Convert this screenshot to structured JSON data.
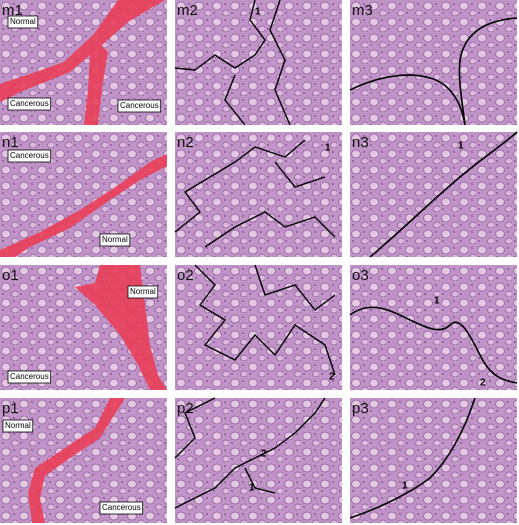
{
  "panels": [
    {
      "label": "m1",
      "annotations": [
        "Normal",
        "Cancerous",
        "Cancerous"
      ]
    },
    {
      "label": "m2",
      "annotations": [
        "1"
      ]
    },
    {
      "label": "m3",
      "annotations": []
    },
    {
      "label": "n1",
      "annotations": [
        "Cancerous",
        "Normal"
      ]
    },
    {
      "label": "n2",
      "annotations": [
        "1"
      ]
    },
    {
      "label": "n3",
      "annotations": [
        "1"
      ]
    },
    {
      "label": "o1",
      "annotations": [
        "Normal",
        "Cancerous"
      ]
    },
    {
      "label": "o2",
      "annotations": [
        "2"
      ]
    },
    {
      "label": "o3",
      "annotations": [
        "1",
        "2"
      ]
    },
    {
      "label": "p1",
      "annotations": [
        "Normal",
        "Cancerous"
      ]
    },
    {
      "label": "p2",
      "annotations": [
        "2",
        "1"
      ]
    },
    {
      "label": "p3",
      "annotations": [
        "1"
      ]
    }
  ]
}
